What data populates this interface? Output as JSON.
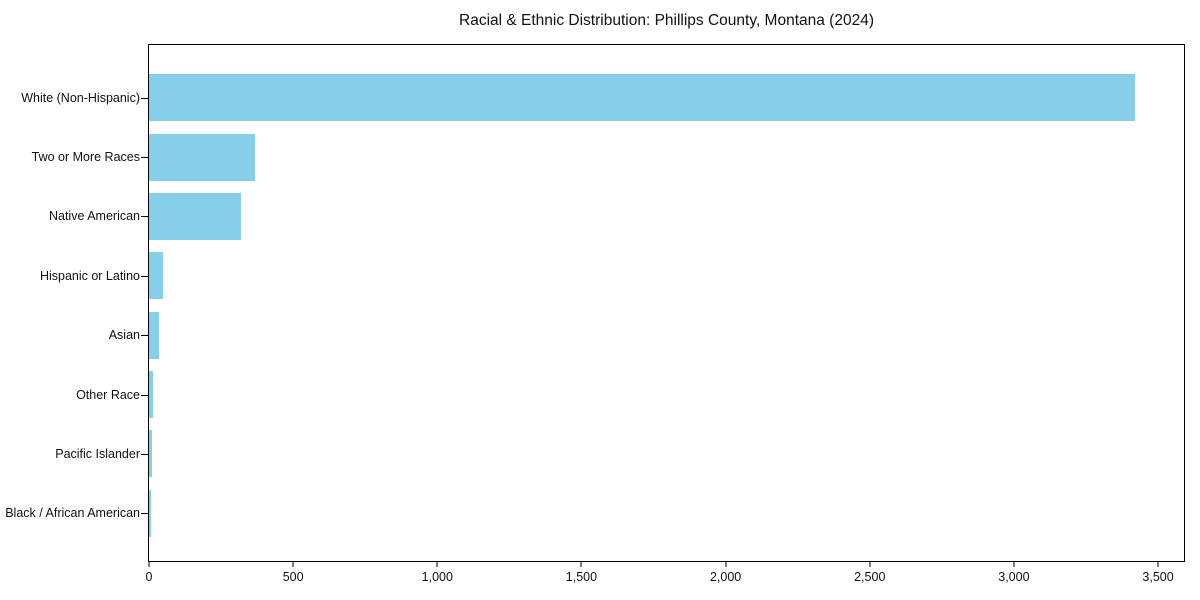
{
  "figure": {
    "background": "#ffffff",
    "text_color": "#111111",
    "axis_color": "#000000"
  },
  "chart_data": {
    "type": "bar",
    "orientation": "horizontal",
    "title": "Racial & Ethnic Distribution: Phillips County, Montana (2024)",
    "categories": [
      "White (Non-Hispanic)",
      "Two or More Races",
      "Native American",
      "Hispanic or Latino",
      "Asian",
      "Other Race",
      "Pacific Islander",
      "Black / African American"
    ],
    "values": [
      3420,
      368,
      319,
      50,
      35,
      15,
      11,
      8
    ],
    "bar_color": "#87CEEB",
    "xlabel": "",
    "ylabel": "",
    "xlim": [
      0,
      3590
    ],
    "xticks": [
      0,
      500,
      1000,
      1500,
      2000,
      2500,
      3000,
      3500
    ],
    "xtick_labels": [
      "0",
      "500",
      "1,000",
      "1,500",
      "2,000",
      "2,500",
      "3,000",
      "3,500"
    ],
    "grid": false,
    "legend": "none",
    "frame": "full-box"
  }
}
